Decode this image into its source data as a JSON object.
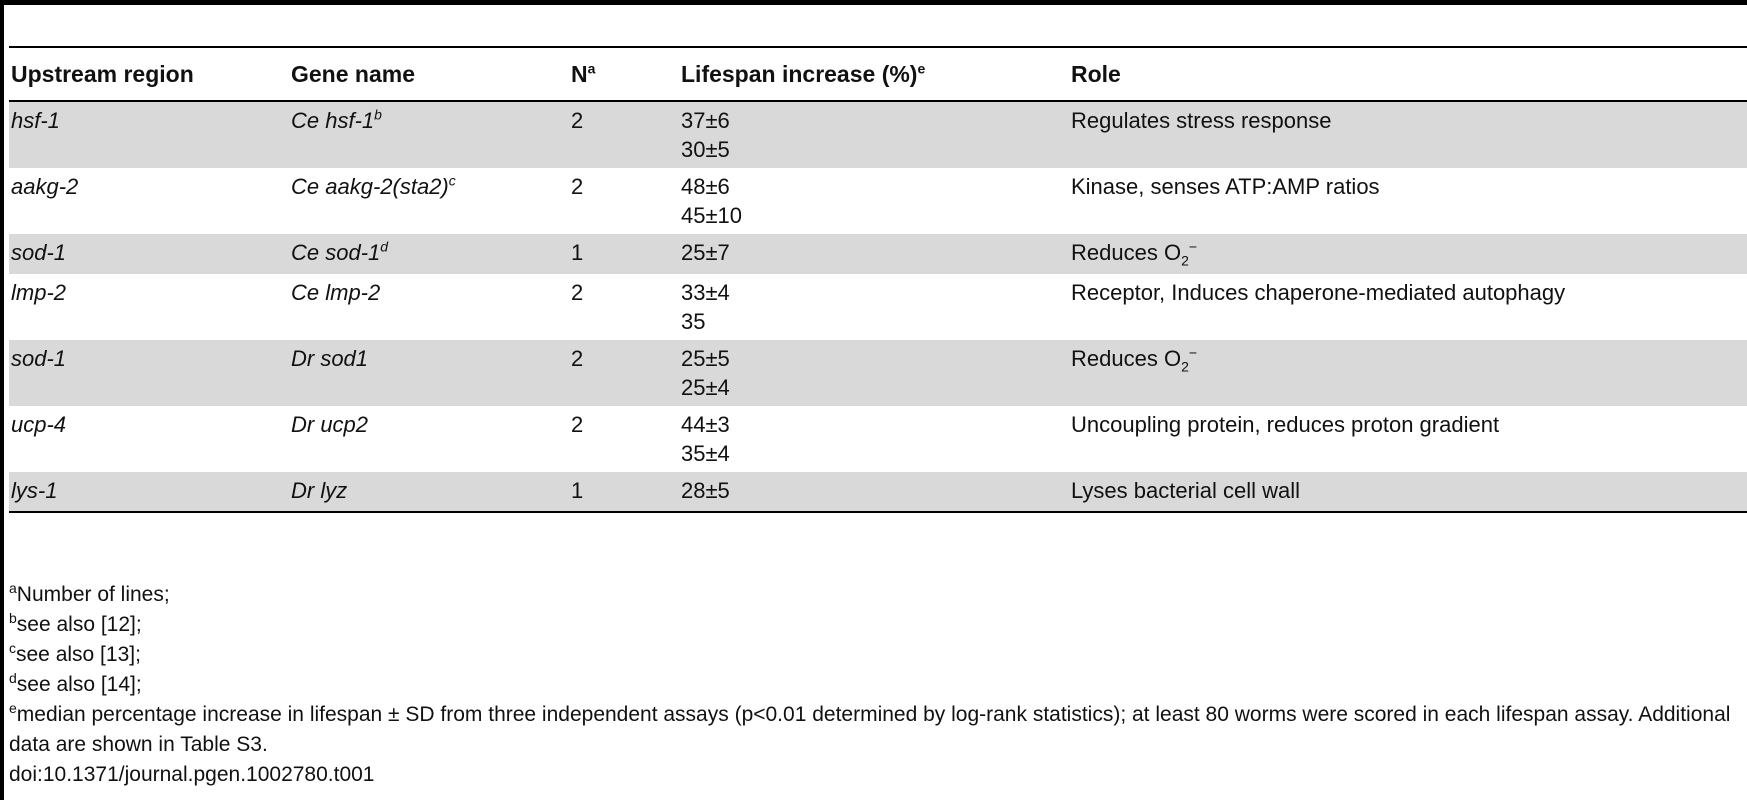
{
  "columns": {
    "upstream": "Upstream region",
    "gene": "Gene name",
    "n": "N",
    "n_sup": "a",
    "lifespan": "Lifespan increase (%)",
    "lifespan_sup": "e",
    "role": "Role"
  },
  "rows": [
    {
      "upstream": "hsf-1",
      "gene": "Ce hsf-1",
      "gene_sup": "b",
      "n": "2",
      "lifespan": [
        "37±6",
        "30±5"
      ],
      "role": "Regulates stress response",
      "role_sub": "",
      "role_sup": ""
    },
    {
      "upstream": "aakg-2",
      "gene": "Ce aakg-2(sta2)",
      "gene_sup": "c",
      "n": "2",
      "lifespan": [
        "48±6",
        "45±10"
      ],
      "role": "Kinase, senses ATP:AMP ratios",
      "role_sub": "",
      "role_sup": ""
    },
    {
      "upstream": "sod-1",
      "gene": "Ce sod-1",
      "gene_sup": "d",
      "n": "1",
      "lifespan": [
        "25±7"
      ],
      "role": "Reduces O",
      "role_sub": "2",
      "role_sup": "−"
    },
    {
      "upstream": "lmp-2",
      "gene": "Ce lmp-2",
      "gene_sup": "",
      "n": "2",
      "lifespan": [
        "33±4",
        "35"
      ],
      "role": "Receptor, Induces chaperone-mediated autophagy",
      "role_sub": "",
      "role_sup": ""
    },
    {
      "upstream": "sod-1",
      "gene": "Dr sod1",
      "gene_sup": "",
      "n": "2",
      "lifespan": [
        "25±5",
        "25±4"
      ],
      "role": "Reduces O",
      "role_sub": "2",
      "role_sup": "−"
    },
    {
      "upstream": "ucp-4",
      "gene": "Dr ucp2",
      "gene_sup": "",
      "n": "2",
      "lifespan": [
        "44±3",
        "35±4"
      ],
      "role": "Uncoupling protein, reduces proton gradient",
      "role_sub": "",
      "role_sup": ""
    },
    {
      "upstream": "lys-1",
      "gene": "Dr lyz",
      "gene_sup": "",
      "n": "1",
      "lifespan": [
        "28±5"
      ],
      "role": "Lyses bacterial cell wall",
      "role_sub": "",
      "role_sup": ""
    }
  ],
  "footnotes": [
    {
      "mark": "a",
      "text": "Number of lines;"
    },
    {
      "mark": "b",
      "text": "see also [12];"
    },
    {
      "mark": "c",
      "text": "see also [13];"
    },
    {
      "mark": "d",
      "text": "see also [14];"
    },
    {
      "mark": "e",
      "text": "median percentage increase in lifespan ± SD from three independent assays (p<0.01 determined by log-rank statistics); at least 80 worms were scored in each lifespan assay. Additional data are shown in Table S3."
    }
  ],
  "doi": "doi:10.1371/journal.pgen.1002780.t001"
}
